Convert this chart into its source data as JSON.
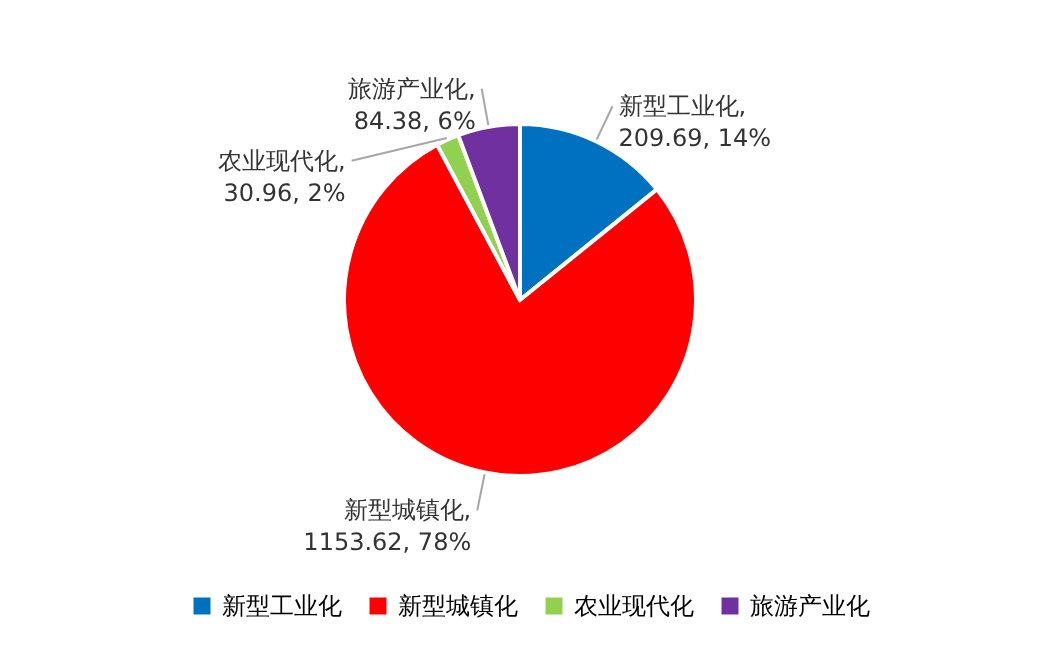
{
  "chart_data": {
    "type": "pie",
    "categories": [
      "新型工业化",
      "新型城镇化",
      "农业现代化",
      "旅游产业化"
    ],
    "values": [
      209.69,
      1153.62,
      30.96,
      84.38
    ],
    "colors": [
      "#0070c0",
      "#ff0000",
      "#92d050",
      "#7030a0"
    ],
    "value_labels": [
      "新型工业化,\n209.69, 14%",
      "新型城镇化,\n1153.62, 78%",
      "农业现代化,\n30.96, 2%",
      "旅游产业化,\n84.38, 6%"
    ],
    "legend": "bottom"
  }
}
